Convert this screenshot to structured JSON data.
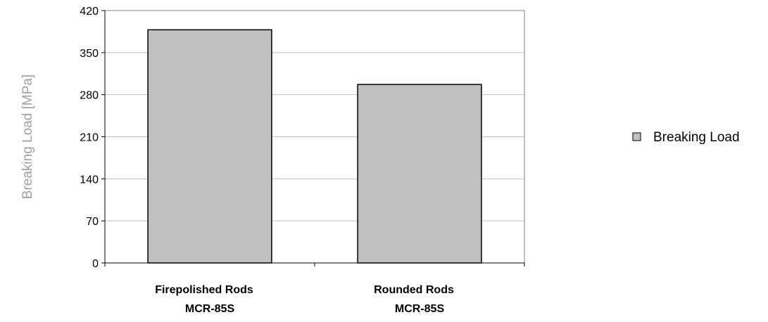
{
  "chart_data": {
    "type": "bar",
    "categories": [
      [
        "Firepolished Rods",
        "MCR-85S"
      ],
      [
        "Rounded Rods",
        "MCR-85S"
      ]
    ],
    "series": [
      {
        "name": "Breaking Load",
        "values": [
          388,
          297
        ],
        "color": "#c0c0c0"
      }
    ],
    "title": "",
    "xlabel": "",
    "ylabel": "Breaking Load  [MPa]",
    "ylim": [
      0,
      420
    ],
    "yticks": [
      0,
      70,
      140,
      210,
      280,
      350,
      420
    ],
    "grid": true,
    "legend_position": "right",
    "colors": {
      "bar_fill": "#c0c0c0",
      "bar_stroke": "#000000",
      "plot_border": "#808080",
      "grid": "#c0c0c0",
      "ylabel": "#a0a0a0"
    }
  }
}
